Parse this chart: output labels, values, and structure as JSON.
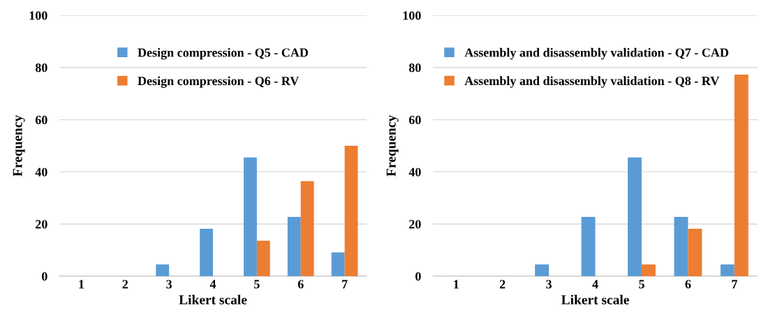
{
  "chart_data": [
    {
      "type": "bar",
      "xlabel": "Likert scale",
      "ylabel": "Frequency",
      "categories": [
        "1",
        "2",
        "3",
        "4",
        "5",
        "6",
        "7"
      ],
      "series": [
        {
          "name": "Design compression - Q5 - CAD",
          "color": "#5b9bd5",
          "values": [
            0,
            0,
            4.5,
            18.2,
            45.5,
            22.7,
            9.1
          ]
        },
        {
          "name": "Design compression - Q6 - RV",
          "color": "#ed7d31",
          "values": [
            0,
            0,
            0,
            0,
            13.6,
            36.4,
            50
          ]
        }
      ],
      "ylim": [
        0,
        100
      ],
      "yticks": [
        0,
        20,
        40,
        60,
        80,
        100
      ],
      "grid": "y",
      "legend": "top"
    },
    {
      "type": "bar",
      "xlabel": "Likert scale",
      "ylabel": "Frequency",
      "categories": [
        "1",
        "2",
        "3",
        "4",
        "5",
        "6",
        "7"
      ],
      "series": [
        {
          "name": "Assembly and disassembly validation - Q7 - CAD",
          "color": "#5b9bd5",
          "values": [
            0,
            0,
            4.5,
            22.7,
            45.5,
            22.7,
            4.5
          ]
        },
        {
          "name": "Assembly and disassembly validation - Q8 - RV",
          "color": "#ed7d31",
          "values": [
            0,
            0,
            0,
            0,
            4.5,
            18.2,
            77.3
          ]
        }
      ],
      "ylim": [
        0,
        100
      ],
      "yticks": [
        0,
        20,
        40,
        60,
        80,
        100
      ],
      "grid": "y",
      "legend": "top left"
    }
  ]
}
